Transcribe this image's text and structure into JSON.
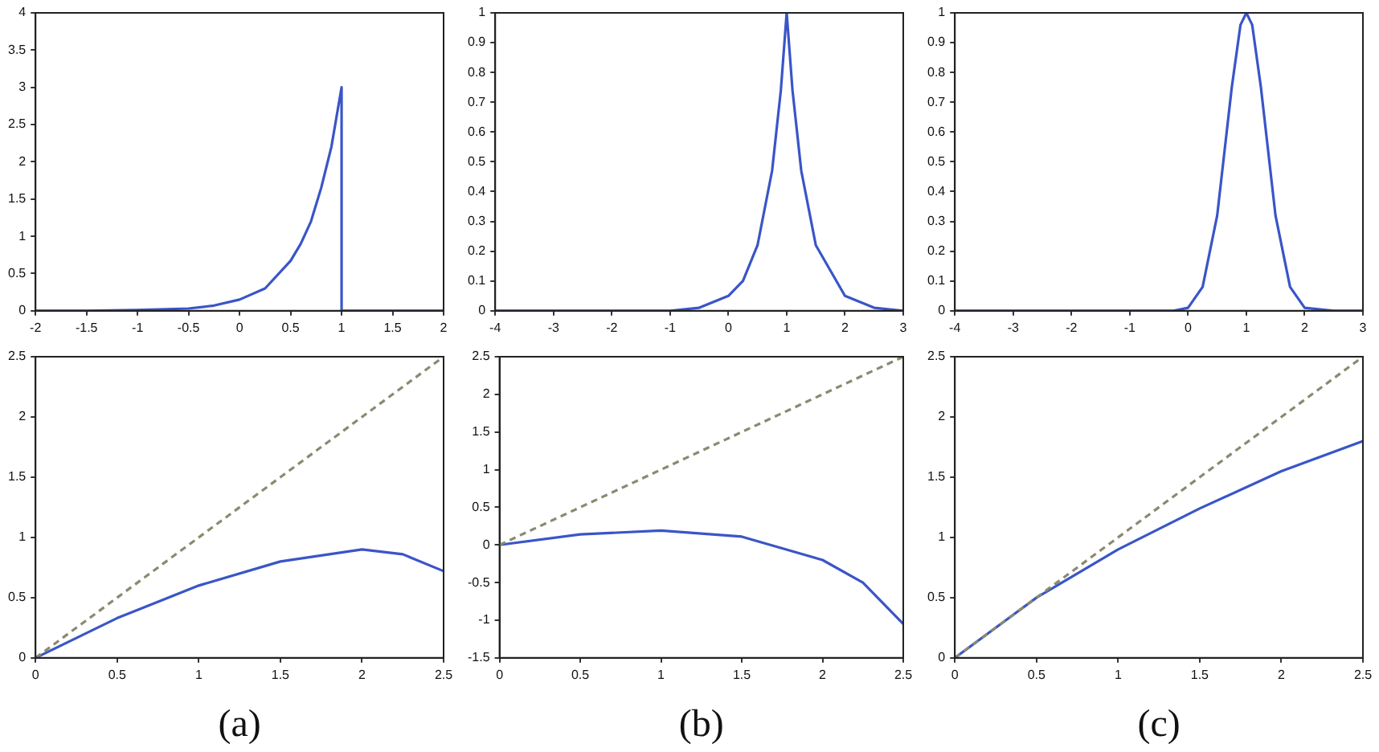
{
  "chart_data": [
    {
      "type": "line",
      "x": [
        -2,
        -1.5,
        -1,
        -0.5,
        -0.25,
        0,
        0.25,
        0.5,
        0.6,
        0.7,
        0.8,
        0.9,
        0.95,
        1,
        1,
        2
      ],
      "series": [
        {
          "color": "#3a55c8",
          "values": [
            0,
            0,
            0.01,
            0.03,
            0.07,
            0.15,
            0.3,
            0.67,
            0.9,
            1.2,
            1.65,
            2.2,
            2.6,
            3,
            0,
            0
          ]
        }
      ],
      "xlim": [
        -2,
        2
      ],
      "xticks": [
        -2,
        -1.5,
        -1,
        -0.5,
        0,
        0.5,
        1,
        1.5,
        2
      ],
      "ylim": [
        0,
        4
      ],
      "yticks": [
        0,
        0.5,
        1,
        1.5,
        2,
        2.5,
        3,
        3.5,
        4
      ],
      "grid": false,
      "legend": false
    },
    {
      "type": "line",
      "x": [
        -4,
        -2,
        -1,
        -0.5,
        0,
        0.25,
        0.5,
        0.75,
        0.9,
        1,
        1.1,
        1.25,
        1.5,
        2,
        2.5,
        3
      ],
      "series": [
        {
          "color": "#3a55c8",
          "values": [
            0,
            0,
            0,
            0.01,
            0.05,
            0.1,
            0.22,
            0.47,
            0.74,
            1,
            0.74,
            0.47,
            0.22,
            0.05,
            0.01,
            0
          ]
        }
      ],
      "xlim": [
        -4,
        3
      ],
      "xticks": [
        -4,
        -3,
        -2,
        -1,
        0,
        1,
        2,
        3
      ],
      "ylim": [
        0,
        1
      ],
      "yticks": [
        0,
        0.1,
        0.2,
        0.3,
        0.4,
        0.5,
        0.6,
        0.7,
        0.8,
        0.9,
        1
      ],
      "grid": false,
      "legend": false
    },
    {
      "type": "line",
      "x": [
        -4,
        -1,
        -0.25,
        0,
        0.25,
        0.5,
        0.75,
        0.9,
        1,
        1.1,
        1.25,
        1.5,
        1.75,
        2,
        2.5,
        3
      ],
      "series": [
        {
          "color": "#3a55c8",
          "values": [
            0,
            0,
            0,
            0.01,
            0.08,
            0.32,
            0.75,
            0.96,
            1,
            0.96,
            0.75,
            0.32,
            0.08,
            0.01,
            0,
            0
          ]
        }
      ],
      "xlim": [
        -4,
        3
      ],
      "xticks": [
        -4,
        -3,
        -2,
        -1,
        0,
        1,
        2,
        3
      ],
      "ylim": [
        0,
        1
      ],
      "yticks": [
        0,
        0.1,
        0.2,
        0.3,
        0.4,
        0.5,
        0.6,
        0.7,
        0.8,
        0.9,
        1
      ],
      "grid": false,
      "legend": false
    },
    {
      "type": "line",
      "x": [
        0,
        0.5,
        1,
        1.5,
        2,
        2.25,
        2.5
      ],
      "series": [
        {
          "color": "#8a8a70",
          "line_style": "dashed",
          "values": [
            0,
            0.5,
            1,
            1.5,
            2,
            2.25,
            2.5
          ]
        },
        {
          "color": "#3a55c8",
          "values": [
            0,
            0.33,
            0.6,
            0.8,
            0.9,
            0.86,
            0.72
          ]
        }
      ],
      "xlim": [
        0,
        2.5
      ],
      "xticks": [
        0,
        0.5,
        1,
        1.5,
        2,
        2.5
      ],
      "ylim": [
        0,
        2.5
      ],
      "yticks": [
        0,
        0.5,
        1,
        1.5,
        2,
        2.5
      ],
      "grid": false,
      "legend": false,
      "annotations": [
        "(a)"
      ]
    },
    {
      "type": "line",
      "x": [
        0,
        0.5,
        1,
        1.5,
        2,
        2.25,
        2.5
      ],
      "series": [
        {
          "color": "#8a8a70",
          "line_style": "dashed",
          "values": [
            0,
            0.5,
            1,
            1.5,
            2,
            2.25,
            2.5
          ]
        },
        {
          "color": "#3a55c8",
          "values": [
            0,
            0.14,
            0.19,
            0.11,
            -0.2,
            -0.5,
            -1.05
          ]
        }
      ],
      "xlim": [
        0,
        2.5
      ],
      "xticks": [
        0,
        0.5,
        1,
        1.5,
        2,
        2.5
      ],
      "ylim": [
        -1.5,
        2.5
      ],
      "yticks": [
        -1.5,
        -1,
        -0.5,
        0,
        0.5,
        1,
        1.5,
        2,
        2.5
      ],
      "grid": false,
      "legend": false,
      "annotations": [
        "(b)"
      ]
    },
    {
      "type": "line",
      "x": [
        0,
        0.5,
        1,
        1.5,
        2,
        2.5
      ],
      "series": [
        {
          "color": "#8a8a70",
          "line_style": "dashed",
          "values": [
            0,
            0.5,
            1,
            1.5,
            2,
            2.5
          ]
        },
        {
          "color": "#3a55c8",
          "values": [
            0,
            0.5,
            0.9,
            1.24,
            1.55,
            1.8
          ]
        }
      ],
      "xlim": [
        0,
        2.5
      ],
      "xticks": [
        0,
        0.5,
        1,
        1.5,
        2,
        2.5
      ],
      "ylim": [
        0,
        2.5
      ],
      "yticks": [
        0,
        0.5,
        1,
        1.5,
        2,
        2.5
      ],
      "grid": false,
      "legend": false,
      "annotations": [
        "(c)"
      ]
    }
  ]
}
